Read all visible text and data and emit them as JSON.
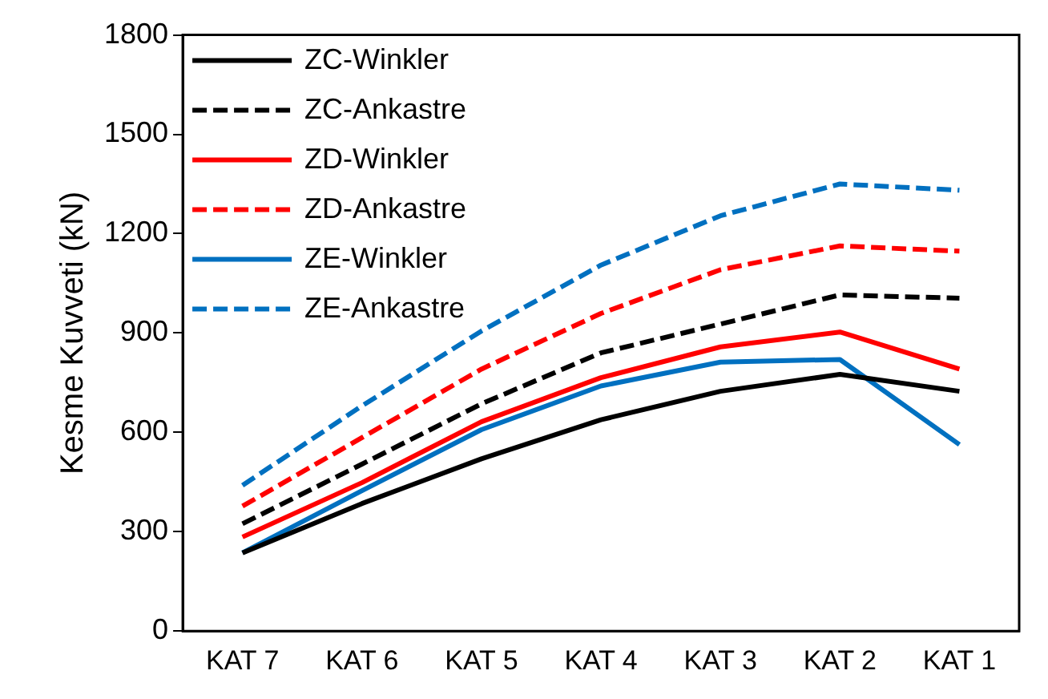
{
  "chart_data": {
    "type": "line",
    "ylabel": "Kesme Kuvveti (kN)",
    "categories": [
      "KAT 7",
      "KAT 6",
      "KAT 5",
      "KAT 4",
      "KAT 3",
      "KAT 2",
      "KAT 1"
    ],
    "series": [
      {
        "name": "ZC-Winkler",
        "color": "#000000",
        "line_style": "solid",
        "values": [
          236,
          385,
          520,
          638,
          724,
          775,
          724
        ]
      },
      {
        "name": "ZC-Ankastre",
        "color": "#000000",
        "line_style": "dashed",
        "values": [
          324,
          504,
          686,
          840,
          927,
          1015,
          1005
        ]
      },
      {
        "name": "ZD-Winkler",
        "color": "#ff0000",
        "line_style": "solid",
        "values": [
          284,
          448,
          632,
          765,
          858,
          903,
          791
        ]
      },
      {
        "name": "ZD-Ankastre",
        "color": "#ff0000",
        "line_style": "dashed",
        "values": [
          377,
          584,
          791,
          959,
          1091,
          1163,
          1147
        ]
      },
      {
        "name": "ZE-Winkler",
        "color": "#0070c0",
        "line_style": "solid",
        "values": [
          236,
          424,
          608,
          740,
          812,
          820,
          563
        ]
      },
      {
        "name": "ZE-Ankastre",
        "color": "#0070c0",
        "line_style": "dashed",
        "values": [
          440,
          680,
          906,
          1105,
          1254,
          1350,
          1331
        ]
      }
    ],
    "ylim": [
      0,
      1800
    ],
    "yticks": [
      0,
      300,
      600,
      900,
      1200,
      1500,
      1800
    ],
    "grid": false,
    "legend": "top left",
    "marker": "none"
  }
}
